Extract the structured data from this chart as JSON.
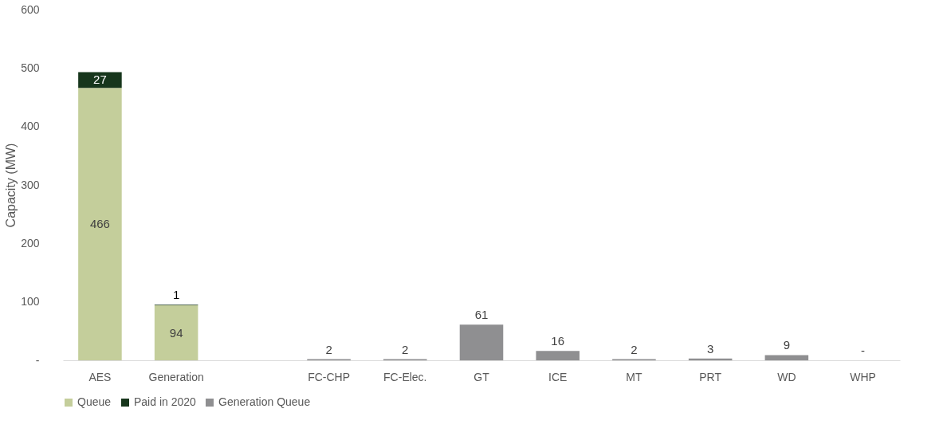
{
  "chart_data": {
    "type": "bar",
    "stacked": true,
    "ylabel": "Capacity (MW)",
    "categories": [
      "AES",
      "Generation",
      null,
      "FC-CHP",
      "FC-Elec.",
      "GT",
      "ICE",
      "MT",
      "PRT",
      "WD",
      "WHP"
    ],
    "series": [
      {
        "name": "Queue",
        "color": "#c4ce9b",
        "values": [
          466,
          94,
          null,
          null,
          null,
          null,
          null,
          null,
          null,
          null,
          null
        ],
        "value_labels": [
          "466",
          "94",
          null,
          null,
          null,
          null,
          null,
          null,
          null,
          null,
          null
        ]
      },
      {
        "name": "Paid in 2020",
        "color": "#17361c",
        "values": [
          27,
          1,
          null,
          null,
          null,
          null,
          null,
          null,
          null,
          null,
          null
        ],
        "value_labels": [
          "27",
          "1",
          null,
          null,
          null,
          null,
          null,
          null,
          null,
          null,
          null
        ]
      },
      {
        "name": "Generation Queue",
        "color": "#8f8f91",
        "values": [
          null,
          null,
          null,
          2,
          2,
          61,
          16,
          2,
          3,
          9,
          0
        ],
        "value_labels": [
          null,
          null,
          null,
          "2",
          "2",
          "61",
          "16",
          "2",
          "3",
          "9",
          "-"
        ]
      }
    ],
    "ylim": [
      0,
      600
    ],
    "yticks": [
      {
        "value": 0,
        "label": "-"
      },
      100,
      200,
      300,
      400,
      500,
      600
    ],
    "grid": false,
    "legend": "bottom"
  }
}
